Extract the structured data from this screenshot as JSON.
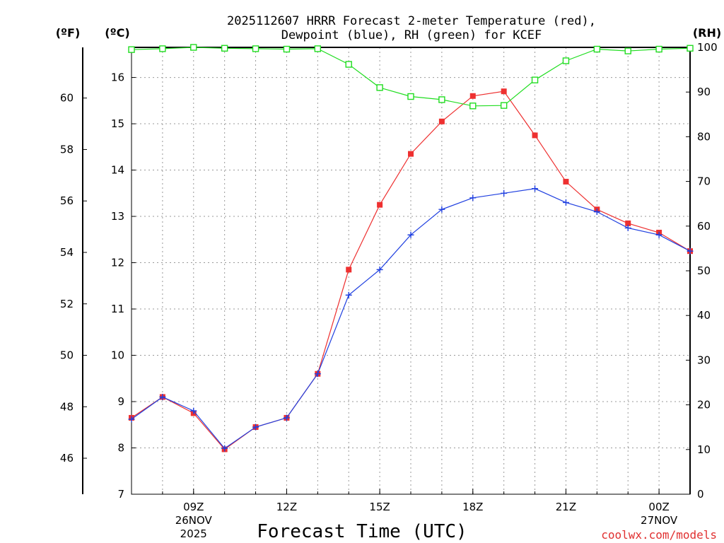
{
  "chart_data": {
    "type": "line",
    "title": [
      "2025112607 HRRR Forecast 2-meter Temperature (red),",
      "Dewpoint (blue), RH (green) for KCEF"
    ],
    "unit_labels": {
      "fahrenheit": "(ºF)",
      "celsius": "(ºC)",
      "rh": "(RH)"
    },
    "xlabel": "Forecast Time (UTC)",
    "credit": "coolwx.com/models",
    "x_hours": [
      7,
      8,
      9,
      10,
      11,
      12,
      13,
      14,
      15,
      16,
      17,
      18,
      19,
      20,
      21,
      22,
      23,
      24,
      25
    ],
    "xlim": [
      7,
      25
    ],
    "x_ticks": [
      {
        "hour": 9,
        "label": "09Z",
        "sub": [
          "26NOV",
          "2025"
        ]
      },
      {
        "hour": 12,
        "label": "12Z",
        "sub": []
      },
      {
        "hour": 15,
        "label": "15Z",
        "sub": []
      },
      {
        "hour": 18,
        "label": "18Z",
        "sub": []
      },
      {
        "hour": 21,
        "label": "21Z",
        "sub": []
      },
      {
        "hour": 24,
        "label": "00Z",
        "sub": [
          "27NOV"
        ]
      }
    ],
    "celsius_axis": {
      "lim": [
        7,
        16.65
      ],
      "ticks": [
        "7",
        "8",
        "9",
        "10",
        "11",
        "12",
        "13",
        "14",
        "15",
        "16"
      ]
    },
    "fahrenheit_axis": {
      "ticks": [
        "46",
        "48",
        "50",
        "52",
        "54",
        "56",
        "58",
        "60"
      ]
    },
    "rh_axis": {
      "lim": [
        0,
        100
      ],
      "ticks": [
        "0",
        "10",
        "20",
        "30",
        "40",
        "50",
        "60",
        "70",
        "80",
        "90",
        "100"
      ]
    },
    "series": [
      {
        "name": "Temperature",
        "unit": "C",
        "color": "#ee3030",
        "marker": "filled-square",
        "values": [
          8.65,
          9.1,
          8.75,
          7.97,
          8.45,
          8.65,
          9.6,
          11.85,
          13.25,
          14.35,
          15.05,
          15.6,
          15.7,
          14.75,
          13.75,
          13.15,
          12.85,
          12.65,
          12.25
        ]
      },
      {
        "name": "Dewpoint",
        "unit": "C",
        "color": "#2040e0",
        "marker": "plus",
        "values": [
          8.62,
          9.1,
          8.8,
          7.99,
          8.45,
          8.65,
          9.6,
          11.3,
          11.85,
          12.6,
          13.15,
          13.4,
          13.5,
          13.6,
          13.3,
          13.1,
          12.75,
          12.6,
          12.25
        ]
      },
      {
        "name": "RH",
        "unit": "%",
        "color": "#20dd20",
        "marker": "open-square",
        "values": [
          99.5,
          99.7,
          100,
          99.8,
          99.7,
          99.6,
          99.7,
          96.2,
          91.0,
          89.0,
          88.3,
          86.9,
          87.0,
          92.7,
          97.0,
          99.6,
          99.2,
          99.6,
          99.8
        ]
      }
    ],
    "grid": true
  }
}
